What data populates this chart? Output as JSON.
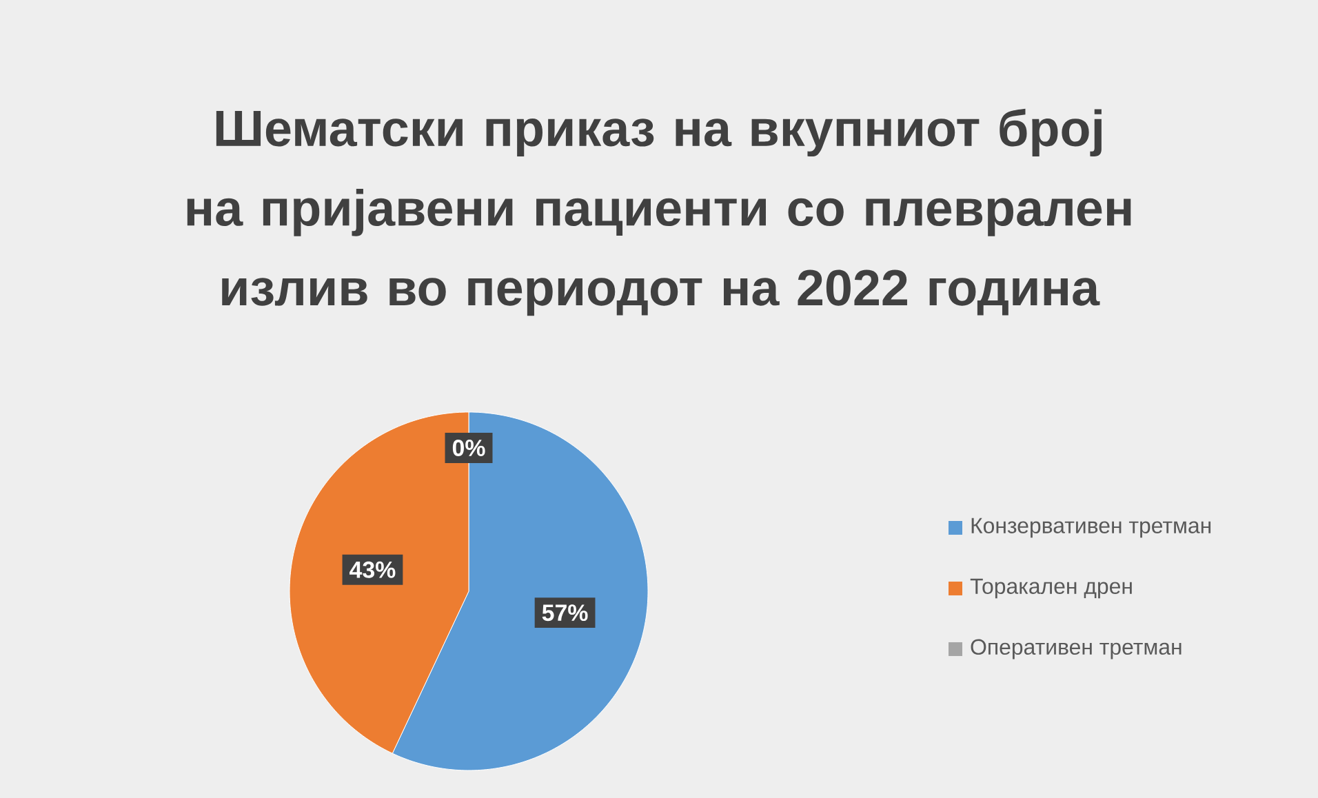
{
  "chart_data": {
    "type": "pie",
    "title": "Шематски приказ на вкупниот број на пријавени пациенти со плеврален излив во периодот на 2022 година",
    "categories": [
      "Конзервативен третман",
      "Торакален дрен",
      "Оперативен третман"
    ],
    "values": [
      57,
      43,
      0
    ],
    "colors": [
      "#5b9bd5",
      "#ed7d31",
      "#a5a5a5"
    ],
    "value_labels": [
      "57%",
      "43%",
      "0%"
    ],
    "legend": "right"
  }
}
